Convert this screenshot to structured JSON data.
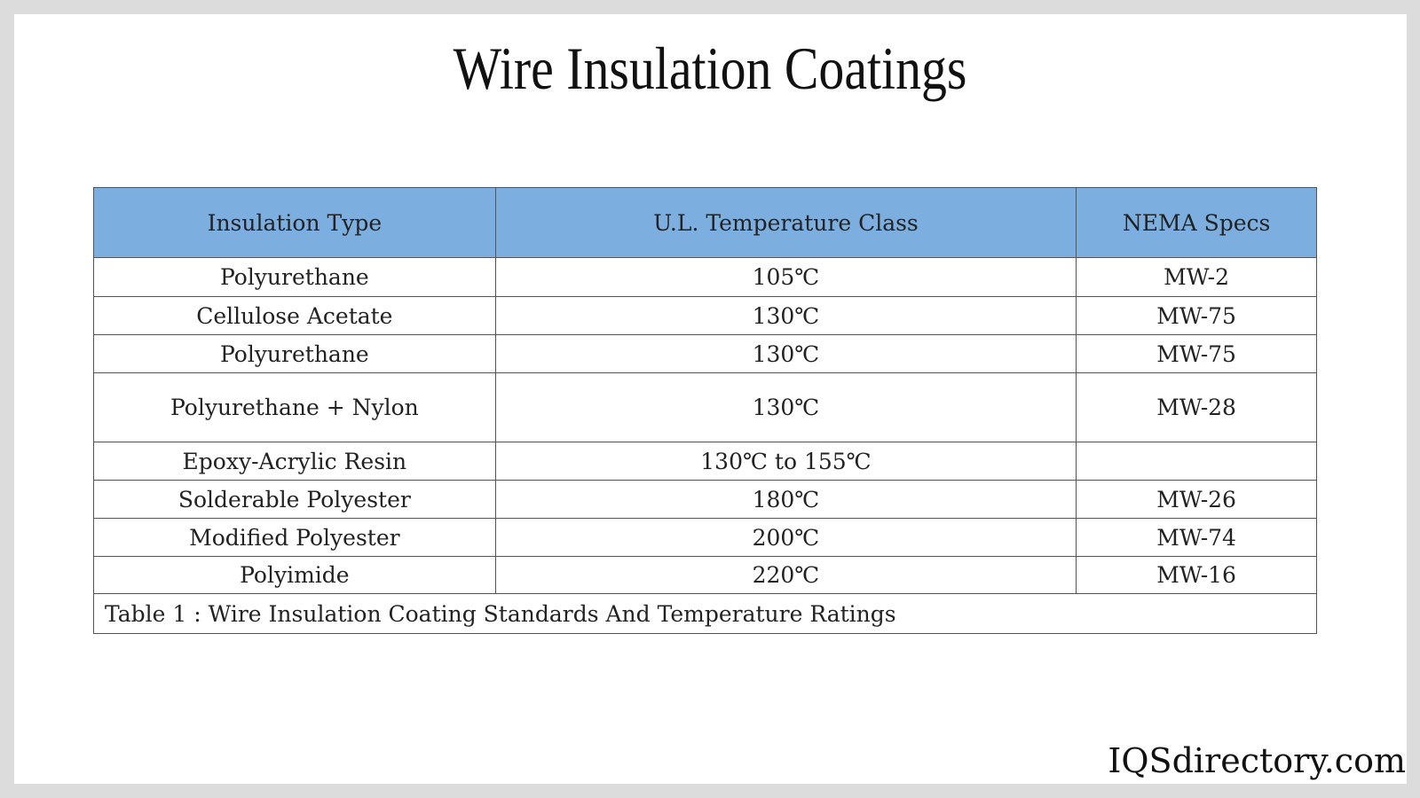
{
  "header": {
    "title": "Wire Insulation Coatings"
  },
  "table": {
    "columns": [
      "Insulation Type",
      "U.L. Temperature Class",
      "NEMA Specs"
    ],
    "rows": [
      {
        "type": "Polyurethane",
        "temperature": "105℃",
        "nema": "MW-2"
      },
      {
        "type": "Cellulose Acetate",
        "temperature": "130℃",
        "nema": "MW-75"
      },
      {
        "type": "Polyurethane",
        "temperature": "130℃",
        "nema": "MW-75"
      },
      {
        "type": "Polyurethane + Nylon",
        "temperature": "130℃",
        "nema": "MW-28"
      },
      {
        "type": "Epoxy-Acrylic Resin",
        "temperature": "130℃ to 155℃"
      },
      {
        "type": "Solderable Polyester",
        "temperature": "180℃",
        "nema": "MW-26"
      },
      {
        "type": "Modified Polyester",
        "temperature": "200℃",
        "nema": "MW-74"
      },
      {
        "type": "Polyimide",
        "temperature": "220℃",
        "nema": "MW-16"
      }
    ],
    "caption": "Table 1 : Wire Insulation Coating Standards And Temperature Ratings"
  },
  "footer": {
    "brand": "IQSdirectory.com"
  }
}
